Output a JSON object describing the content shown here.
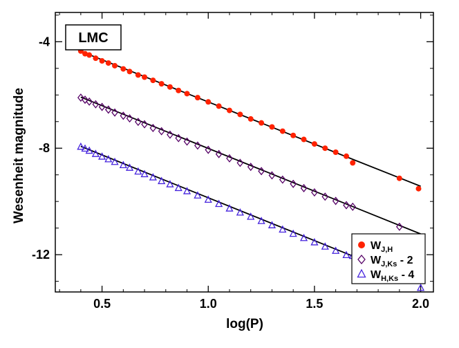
{
  "chart_data": {
    "type": "scatter",
    "title": "",
    "panel_label": "LMC",
    "xlabel": "log(P)",
    "ylabel": "Wesenheit magnitude",
    "xlim": [
      0.28,
      2.06
    ],
    "ylim": [
      -2.9,
      -13.4
    ],
    "y_inverted": true,
    "x_ticks": [
      0.5,
      1.0,
      1.5,
      2.0
    ],
    "x_tick_labels": [
      "0.5",
      "1.0",
      "1.5",
      "2.0"
    ],
    "y_ticks": [
      -4,
      -8,
      -12
    ],
    "y_tick_labels": [
      "-4",
      "-8",
      "-12"
    ],
    "grid": false,
    "legend_position": "bottom-right",
    "series": [
      {
        "name": "W_J,H",
        "legend": {
          "main": "W",
          "sub": "J,H",
          "suffix": ""
        },
        "marker": "filled-circle",
        "color": "#ff2200",
        "fit": {
          "x": [
            0.4,
            2.0
          ],
          "y": [
            -4.36,
            -9.43
          ]
        },
        "x": [
          0.4,
          0.42,
          0.44,
          0.47,
          0.5,
          0.53,
          0.56,
          0.6,
          0.63,
          0.67,
          0.7,
          0.74,
          0.78,
          0.82,
          0.86,
          0.9,
          0.95,
          1.0,
          1.05,
          1.1,
          1.15,
          1.2,
          1.25,
          1.3,
          1.35,
          1.4,
          1.45,
          1.5,
          1.55,
          1.6,
          1.65,
          1.68,
          1.9,
          1.99
        ],
        "y": [
          -4.35,
          -4.45,
          -4.5,
          -4.62,
          -4.72,
          -4.8,
          -4.9,
          -5.02,
          -5.12,
          -5.25,
          -5.33,
          -5.45,
          -5.58,
          -5.7,
          -5.83,
          -5.95,
          -6.1,
          -6.26,
          -6.42,
          -6.58,
          -6.73,
          -6.9,
          -7.05,
          -7.2,
          -7.36,
          -7.52,
          -7.67,
          -7.84,
          -8.0,
          -8.15,
          -8.3,
          -8.55,
          -9.13,
          -9.52
        ]
      },
      {
        "name": "W_J,Ks - 2",
        "legend": {
          "main": "W",
          "sub": "J,Ks",
          "suffix": " - 2"
        },
        "marker": "open-diamond",
        "color": "#550066",
        "fit": {
          "x": [
            0.4,
            2.0
          ],
          "y": [
            -6.08,
            -11.22
          ]
        },
        "x": [
          0.4,
          0.42,
          0.44,
          0.47,
          0.5,
          0.53,
          0.56,
          0.6,
          0.63,
          0.67,
          0.7,
          0.74,
          0.78,
          0.82,
          0.86,
          0.9,
          0.95,
          1.0,
          1.05,
          1.1,
          1.15,
          1.2,
          1.25,
          1.3,
          1.35,
          1.4,
          1.45,
          1.5,
          1.55,
          1.6,
          1.65,
          1.68,
          1.9,
          2.0
        ],
        "y": [
          -6.1,
          -6.18,
          -6.25,
          -6.35,
          -6.45,
          -6.55,
          -6.66,
          -6.78,
          -6.88,
          -7.01,
          -7.1,
          -7.24,
          -7.36,
          -7.49,
          -7.62,
          -7.75,
          -7.9,
          -8.06,
          -8.22,
          -8.38,
          -8.55,
          -8.7,
          -8.86,
          -9.02,
          -9.18,
          -9.34,
          -9.5,
          -9.66,
          -9.82,
          -9.98,
          -10.14,
          -10.2,
          -10.95,
          -11.42
        ]
      },
      {
        "name": "W_H,Ks - 4",
        "legend": {
          "main": "W",
          "sub": "H,Ks",
          "suffix": " - 4"
        },
        "marker": "open-triangle",
        "color": "#4422dd",
        "fit": {
          "x": [
            0.4,
            2.0
          ],
          "y": [
            -7.93,
            -13.08
          ]
        },
        "x": [
          0.4,
          0.42,
          0.44,
          0.47,
          0.5,
          0.53,
          0.56,
          0.6,
          0.63,
          0.67,
          0.7,
          0.74,
          0.78,
          0.82,
          0.86,
          0.9,
          0.95,
          1.0,
          1.05,
          1.1,
          1.15,
          1.2,
          1.25,
          1.3,
          1.35,
          1.4,
          1.45,
          1.5,
          1.55,
          1.6,
          1.65,
          1.68,
          1.9,
          2.0
        ],
        "y": [
          -7.95,
          -8.02,
          -8.1,
          -8.22,
          -8.32,
          -8.42,
          -8.52,
          -8.64,
          -8.74,
          -8.88,
          -8.98,
          -9.1,
          -9.24,
          -9.36,
          -9.5,
          -9.62,
          -9.78,
          -9.94,
          -10.1,
          -10.27,
          -10.42,
          -10.58,
          -10.74,
          -10.9,
          -11.06,
          -11.22,
          -11.38,
          -11.54,
          -11.7,
          -11.86,
          -12.02,
          -12.05,
          -12.87,
          -13.25
        ]
      }
    ]
  }
}
